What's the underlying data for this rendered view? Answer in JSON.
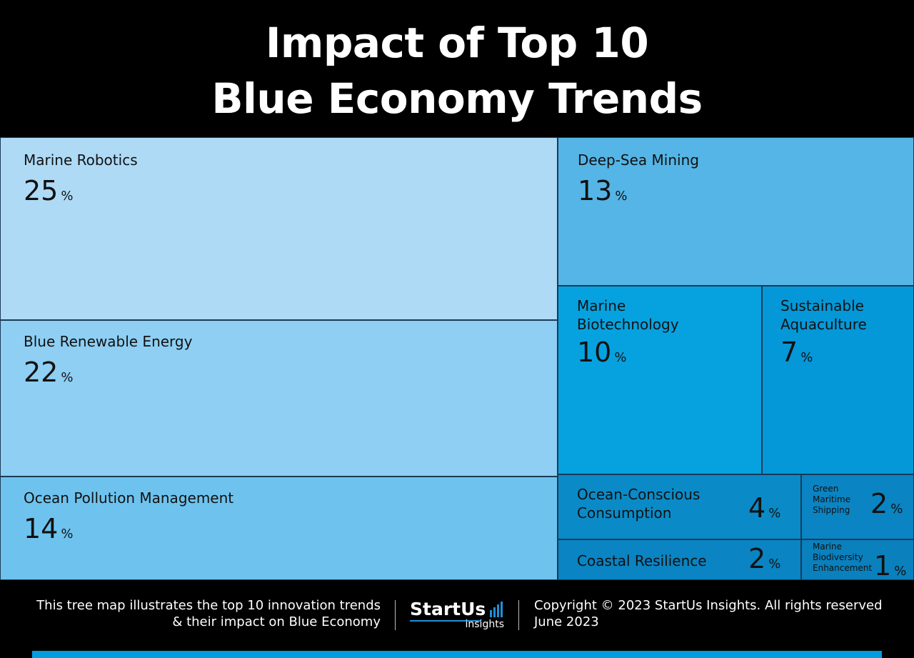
{
  "header": {
    "title_line1": "Impact of Top 10",
    "title_line2": "Blue Economy Trends"
  },
  "colors": {
    "marine_robotics": "#aedaf6",
    "blue_renewable_energy": "#8ecff3",
    "ocean_pollution_management": "#6ec3ee",
    "deep_sea_mining": "#54b5e6",
    "marine_biotechnology": "#06a2e0",
    "sustainable_aquaculture": "#0498d8",
    "ocean_conscious_consumption": "#0a8bc8",
    "coastal_resilience": "#0a84c2",
    "green_maritime_shipping": "#0a84c2",
    "marine_biodiversity_enhancement": "#0a80bd"
  },
  "chart_data": {
    "type": "treemap",
    "title": "Impact of Top 10 Blue Economy Trends",
    "unit": "%",
    "items": [
      {
        "name": "Marine Robotics",
        "value": 25
      },
      {
        "name": "Blue Renewable Energy",
        "value": 22
      },
      {
        "name": "Ocean Pollution Management",
        "value": 14
      },
      {
        "name": "Deep-Sea Mining",
        "value": 13
      },
      {
        "name": "Marine\nBiotechnology",
        "value": 10
      },
      {
        "name": "Sustainable\nAquaculture",
        "value": 7
      },
      {
        "name": "Ocean-Conscious\nConsumption",
        "value": 4
      },
      {
        "name": "Green\nMaritime\nShipping",
        "value": 2
      },
      {
        "name": "Coastal Resilience",
        "value": 2
      },
      {
        "name": "Marine\nBiodiversity\nEnhancement",
        "value": 1
      }
    ]
  },
  "footer": {
    "description_line1": "This tree map illustrates the top 10 innovation trends",
    "description_line2": "& their impact on Blue Economy",
    "logo_word": "StartUs",
    "logo_sub": "insights",
    "copyright": "Copyright © 2023 StartUs Insights. All rights reserved",
    "date": "June 2023"
  }
}
